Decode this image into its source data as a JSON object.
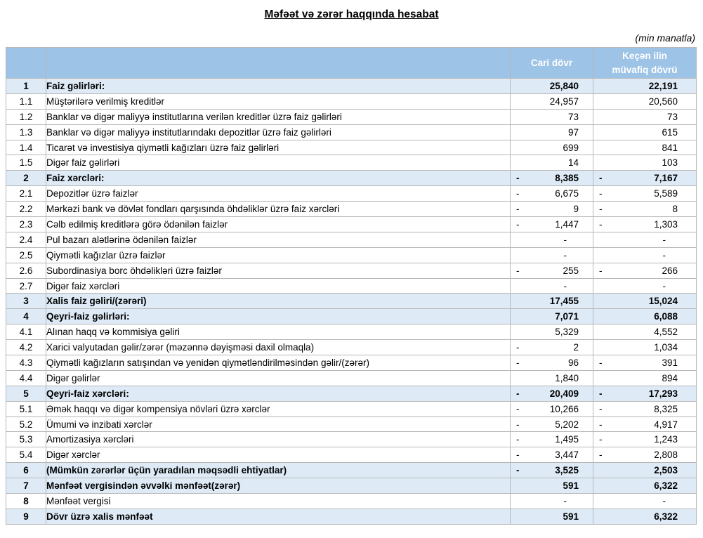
{
  "title": "Məfəət və zərər haqqında hesabat",
  "unit_note": "(min manatla)",
  "colors": {
    "header_bg": "#9dc3e6",
    "header_text": "#ffffff",
    "highlight_bg": "#deebf7",
    "border": "#b7b7b7"
  },
  "table": {
    "columns": {
      "current": "Cari dövr",
      "previous": "Keçən ilin müvafiq dövrü"
    },
    "rows": [
      {
        "num": "1",
        "label": "Faiz gəlirləri:",
        "c1": {
          "sign": "",
          "value": "25,840"
        },
        "c2": {
          "sign": "",
          "value": "22,191"
        },
        "highlight": true
      },
      {
        "num": "1.1",
        "label": "Müştərilərə verilmiş kreditlər",
        "c1": {
          "sign": "",
          "value": "24,957"
        },
        "c2": {
          "sign": "",
          "value": "20,560"
        },
        "highlight": false
      },
      {
        "num": "1.2",
        "label": "Banklar və digər maliyyə institutlarına verilən kreditlər üzrə faiz gəlirləri",
        "c1": {
          "sign": "",
          "value": "73"
        },
        "c2": {
          "sign": "",
          "value": "73"
        },
        "highlight": false
      },
      {
        "num": "1.3",
        "label": "Banklar və digər maliyyə institutlarındakı depozitlər üzrə faiz gəlirləri",
        "c1": {
          "sign": "",
          "value": "97"
        },
        "c2": {
          "sign": "",
          "value": "615"
        },
        "highlight": false
      },
      {
        "num": "1.4",
        "label": "Ticarət və investisiya qiymətli kağızları üzrə faiz gəlirləri",
        "c1": {
          "sign": "",
          "value": "699"
        },
        "c2": {
          "sign": "",
          "value": "841"
        },
        "highlight": false
      },
      {
        "num": "1.5",
        "label": "Digər faiz gəlirləri",
        "c1": {
          "sign": "",
          "value": "14"
        },
        "c2": {
          "sign": "",
          "value": "103"
        },
        "highlight": false
      },
      {
        "num": "2",
        "label": "Faiz xərcləri:",
        "c1": {
          "sign": "-",
          "value": "8,385"
        },
        "c2": {
          "sign": "-",
          "value": "7,167"
        },
        "highlight": true
      },
      {
        "num": "2.1",
        "label": "Depozitlər üzrə faizlər",
        "c1": {
          "sign": "-",
          "value": "6,675"
        },
        "c2": {
          "sign": "-",
          "value": "5,589"
        },
        "highlight": false
      },
      {
        "num": "2.2",
        "label": "Mərkəzi bank və dövlət fondları qarşısında öhdəliklər üzrə faiz xərcləri",
        "c1": {
          "sign": "-",
          "value": "9"
        },
        "c2": {
          "sign": "-",
          "value": "8"
        },
        "highlight": false
      },
      {
        "num": "2.3",
        "label": "Cəlb edilmiş kreditlərə görə ödənilən faizlər",
        "c1": {
          "sign": "-",
          "value": "1,447"
        },
        "c2": {
          "sign": "-",
          "value": "1,303"
        },
        "highlight": false
      },
      {
        "num": "2.4",
        "label": "Pul bazarı alətlərinə ödənilən faizlər",
        "c1": {
          "sign": "",
          "value": "-"
        },
        "c2": {
          "sign": "",
          "value": "-"
        },
        "highlight": false
      },
      {
        "num": "2.5",
        "label": "Qiymətli kağızlar üzrə faizlər",
        "c1": {
          "sign": "",
          "value": "-"
        },
        "c2": {
          "sign": "",
          "value": "-"
        },
        "highlight": false
      },
      {
        "num": "2.6",
        "label": "Subordinasiya borc öhdəlikləri üzrə faizlər",
        "c1": {
          "sign": "-",
          "value": "255"
        },
        "c2": {
          "sign": "-",
          "value": "266"
        },
        "highlight": false
      },
      {
        "num": "2.7",
        "label": "Digər faiz xərcləri",
        "c1": {
          "sign": "",
          "value": "-"
        },
        "c2": {
          "sign": "",
          "value": "-"
        },
        "highlight": false
      },
      {
        "num": "3",
        "label": "Xalis faiz gəliri/(zərəri)",
        "c1": {
          "sign": "",
          "value": "17,455"
        },
        "c2": {
          "sign": "",
          "value": "15,024"
        },
        "highlight": true
      },
      {
        "num": "4",
        "label": "Qeyri-faiz gəlirləri:",
        "c1": {
          "sign": "",
          "value": "7,071"
        },
        "c2": {
          "sign": "",
          "value": "6,088"
        },
        "highlight": true
      },
      {
        "num": "4.1",
        "label": "Alınan haqq və kommisiya gəliri",
        "c1": {
          "sign": "",
          "value": "5,329"
        },
        "c2": {
          "sign": "",
          "value": "4,552"
        },
        "highlight": false
      },
      {
        "num": "4.2",
        "label": "Xarici valyutadan gəlir/zərər (məzənnə dəyişməsi daxil olmaqla)",
        "c1": {
          "sign": "-",
          "value": "2"
        },
        "c2": {
          "sign": "",
          "value": "1,034"
        },
        "highlight": false
      },
      {
        "num": "4.3",
        "label": "Qiymətli kağızların satışından və yenidən qiymətləndirilməsindən gəlir/(zərər)",
        "c1": {
          "sign": "-",
          "value": "96"
        },
        "c2": {
          "sign": "-",
          "value": "391"
        },
        "highlight": false
      },
      {
        "num": "4.4",
        "label": "Digər gəlirlər",
        "c1": {
          "sign": "",
          "value": "1,840"
        },
        "c2": {
          "sign": "",
          "value": "894"
        },
        "highlight": false
      },
      {
        "num": "5",
        "label": "Qeyri-faiz xərcləri:",
        "c1": {
          "sign": "-",
          "value": "20,409"
        },
        "c2": {
          "sign": "-",
          "value": "17,293"
        },
        "highlight": true
      },
      {
        "num": "5.1",
        "label": "Əmək haqqı və digər kompensiya növləri üzrə xərclər",
        "c1": {
          "sign": "-",
          "value": "10,266"
        },
        "c2": {
          "sign": "-",
          "value": "8,325"
        },
        "highlight": false
      },
      {
        "num": "5.2",
        "label": "Ümumi və inzibati xərclər",
        "c1": {
          "sign": "-",
          "value": "5,202"
        },
        "c2": {
          "sign": "-",
          "value": "4,917"
        },
        "highlight": false
      },
      {
        "num": "5.3",
        "label": "Amortizasiya xərcləri",
        "c1": {
          "sign": "-",
          "value": "1,495"
        },
        "c2": {
          "sign": "-",
          "value": "1,243"
        },
        "highlight": false
      },
      {
        "num": "5.4",
        "label": "Digər xərclər",
        "c1": {
          "sign": "-",
          "value": "3,447"
        },
        "c2": {
          "sign": "-",
          "value": "2,808"
        },
        "highlight": false
      },
      {
        "num": "6",
        "label": "(Mümkün zərərlər üçün yaradılan məqsədli ehtiyatlar)",
        "c1": {
          "sign": "-",
          "value": "3,525"
        },
        "c2": {
          "sign": "",
          "value": "2,503"
        },
        "highlight": true
      },
      {
        "num": "7",
        "label": "Mənfəət vergisindən əvvəlki mənfəət(zərər)",
        "c1": {
          "sign": "",
          "value": "591"
        },
        "c2": {
          "sign": "",
          "value": "6,322"
        },
        "highlight": true
      },
      {
        "num": "8",
        "label": "Mənfəət vergisi",
        "c1": {
          "sign": "",
          "value": "-"
        },
        "c2": {
          "sign": "",
          "value": "-"
        },
        "highlight": false
      },
      {
        "num": "9",
        "label": "Dövr üzrə xalis mənfəət",
        "c1": {
          "sign": "",
          "value": "591"
        },
        "c2": {
          "sign": "",
          "value": "6,322"
        },
        "highlight": true
      }
    ]
  }
}
